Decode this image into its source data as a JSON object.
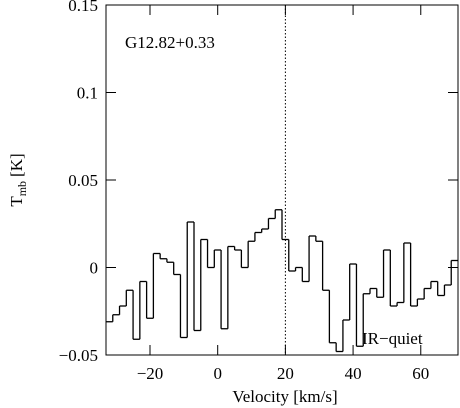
{
  "chart_data": {
    "type": "step",
    "annotation": "G12.82+0.33",
    "annotation2": "IR−quiet",
    "xlabel": "Velocity [km/s]",
    "ylabel": {
      "main": "T",
      "sub": "mb",
      "unit": "[K]"
    },
    "x": [
      -32,
      -30,
      -28,
      -26,
      -24,
      -22,
      -20,
      -18,
      -16,
      -14,
      -12,
      -10,
      -8,
      -6,
      -4,
      -2,
      0,
      2,
      4,
      6,
      8,
      10,
      12,
      14,
      16,
      18,
      20,
      22,
      24,
      26,
      28,
      30,
      32,
      34,
      36,
      38,
      40,
      42,
      44,
      46,
      48,
      50,
      52,
      54,
      56,
      58,
      60,
      62,
      64,
      66,
      68,
      70
    ],
    "values": [
      -0.031,
      -0.027,
      -0.022,
      -0.013,
      -0.041,
      -0.008,
      -0.029,
      0.008,
      0.005,
      0.003,
      -0.004,
      -0.04,
      0.026,
      -0.036,
      0.016,
      0.0,
      0.01,
      -0.035,
      0.012,
      0.01,
      0.0,
      0.015,
      0.02,
      0.022,
      0.028,
      0.033,
      0.016,
      -0.002,
      0.0,
      -0.008,
      0.018,
      0.015,
      -0.013,
      -0.043,
      -0.048,
      -0.03,
      0.002,
      -0.045,
      -0.015,
      -0.012,
      -0.017,
      0.01,
      -0.022,
      -0.02,
      0.014,
      -0.022,
      -0.018,
      -0.012,
      -0.008,
      -0.016,
      -0.01,
      0.004
    ],
    "channel_width": 2,
    "color": "#000000",
    "vline": 20,
    "xlim": [
      -33,
      71
    ],
    "ylim": [
      -0.05,
      0.15
    ],
    "xticks": [
      {
        "value": -20,
        "label": "−20"
      },
      0,
      20,
      40,
      60
    ],
    "yticks": [
      {
        "value": -0.05,
        "label": "−0.05"
      },
      0,
      0.05,
      0.1,
      0.15
    ]
  }
}
